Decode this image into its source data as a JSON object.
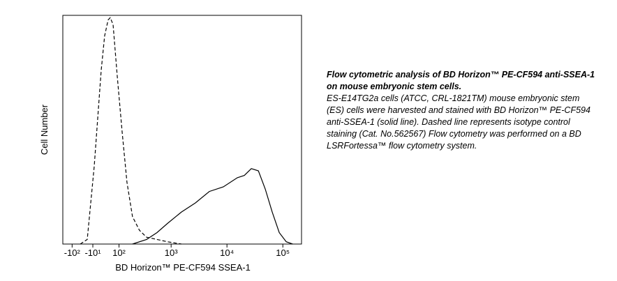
{
  "chart_data": {
    "type": "line",
    "x_label": "BD Horizon™ PE-CF594 SSEA-1",
    "y_label": "Cell Number",
    "xscale": "biexponential",
    "xlim": [
      -160,
      216000
    ],
    "ylim": [
      0,
      100
    ],
    "xticks": [
      {
        "value": -100,
        "label": "-10²"
      },
      {
        "value": -10,
        "label": "-10¹"
      },
      {
        "value": 100,
        "label": "10²"
      },
      {
        "value": 1000,
        "label": "10³"
      },
      {
        "value": 10000,
        "label": "10⁴"
      },
      {
        "value": 100000,
        "label": "10⁵"
      }
    ],
    "series": [
      {
        "color": "#000000",
        "dash": "dashed",
        "x": [
          -60,
          -31,
          -5,
          21,
          34,
          48,
          57,
          70,
          91,
          118,
          150,
          194,
          264,
          359,
          555,
          859,
          1530
        ],
        "values": [
          0,
          2,
          34,
          76,
          91,
          98,
          99,
          96,
          73,
          49,
          27,
          12,
          6,
          3,
          2,
          1,
          0
        ]
      },
      {
        "color": "#000000",
        "dash": "solid",
        "x": [
          194,
          359,
          555,
          859,
          1530,
          2730,
          4840,
          8630,
          15300,
          20500,
          27300,
          36500,
          48500,
          64500,
          86300,
          115000,
          150000
        ],
        "values": [
          0,
          2,
          5,
          9,
          14,
          18,
          23,
          25,
          29,
          30,
          33,
          32,
          24,
          14,
          5,
          1,
          0
        ]
      }
    ]
  },
  "caption": {
    "title": "Flow cytometric analysis of BD Horizon™ PE-CF594 anti-SSEA-1 on mouse embryonic stem cells.",
    "text": "ES-E14TG2a cells (ATCC, CRL-1821TM) mouse embryonic stem (ES) cells were harvested and stained with BD Horizon™ PE-CF594 anti-SSEA-1 (solid line). Dashed line represents isotype control staining (Cat. No.562567) Flow cytometry was performed on a BD LSRFortessa™ flow cytometry system."
  }
}
